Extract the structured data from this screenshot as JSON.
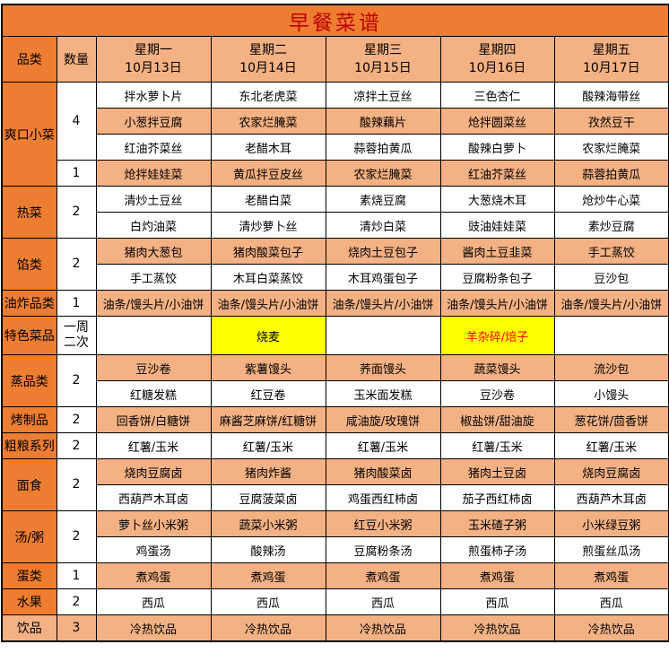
{
  "title": "早餐菜谱",
  "header": {
    "category_label": "品类",
    "qty_label": "数量",
    "days": [
      {
        "name": "星期一",
        "date": "10月13日"
      },
      {
        "name": "星期二",
        "date": "10月14日"
      },
      {
        "name": "星期三",
        "date": "10月15日"
      },
      {
        "name": "星期四",
        "date": "10月16日"
      },
      {
        "name": "星期五",
        "date": "10月17日"
      }
    ]
  },
  "colors": {
    "dark_orange": "#ED7D31",
    "light_orange": "#F4B183",
    "highlight_yellow": "#FFFF00",
    "title_red": "#C00000",
    "special_red": "#FF0000",
    "border_black": "#000000"
  },
  "sections": [
    {
      "category": "爽口小菜",
      "qty_groups": [
        {
          "qty": "4",
          "rows": 3
        },
        {
          "qty": "1",
          "rows": 1
        }
      ],
      "rows": [
        {
          "shade": "white",
          "cells": [
            "拌水萝卜片",
            "东北老虎菜",
            "凉拌土豆丝",
            "三色杏仁",
            "酸辣海带丝"
          ]
        },
        {
          "shade": "orange",
          "cells": [
            "小葱拌豆腐",
            "农家烂腌菜",
            "酸辣藕片",
            "炝拌圆菜丝",
            "孜然豆干"
          ]
        },
        {
          "shade": "white",
          "cells": [
            "红油芥菜丝",
            "老醋木耳",
            "蒜蓉拍黄瓜",
            "酸辣白萝卜",
            "农家烂腌菜"
          ]
        },
        {
          "shade": "orange",
          "cells": [
            "炝拌娃娃菜",
            "黄瓜拌豆皮丝",
            "农家烂腌菜",
            "红油芥菜丝",
            "蒜蓉拍黄瓜"
          ]
        }
      ]
    },
    {
      "category": "热菜",
      "qty_groups": [
        {
          "qty": "2",
          "rows": 2
        }
      ],
      "rows": [
        {
          "shade": "white",
          "cells": [
            "清炒土豆丝",
            "老醋白菜",
            "素烧豆腐",
            "大葱烧木耳",
            "炝炒牛心菜"
          ]
        },
        {
          "shade": "white",
          "cells": [
            "白灼油菜",
            "清炒萝卜丝",
            "清炒白菜",
            "豉油娃娃菜",
            "素炒豆腐"
          ]
        }
      ]
    },
    {
      "category": "馅类",
      "qty_groups": [
        {
          "qty": "2",
          "rows": 2
        }
      ],
      "rows": [
        {
          "shade": "orange",
          "cells": [
            "猪肉大葱包",
            "猪肉酸菜包子",
            "烧肉土豆包子",
            "酱肉土豆韭菜",
            "手工蒸饺"
          ]
        },
        {
          "shade": "white",
          "cells": [
            "手工蒸饺",
            "木耳白菜蒸饺",
            "木耳鸡蛋包子",
            "豆腐粉条包子",
            "豆沙包"
          ]
        }
      ]
    },
    {
      "category": "油炸品类",
      "qty_groups": [
        {
          "qty": "1",
          "rows": 1
        }
      ],
      "rows": [
        {
          "shade": "orange",
          "cells": [
            "油条/馒头片/小油饼",
            "油条/馒头片/小油饼",
            "油条/馒头片/小油饼",
            "油条/馒头片/小油饼",
            "油条/馒头片/小油饼"
          ]
        }
      ]
    },
    {
      "category": "特色菜品",
      "qty_groups": [
        {
          "qty": "一周\n二次",
          "rows": 1
        }
      ],
      "rows": [
        {
          "shade": "white",
          "tall": true,
          "cells": [
            "",
            {
              "text": "烧麦",
              "bg": "yellow"
            },
            "",
            {
              "text": "羊杂碎/焙子",
              "bg": "yellow",
              "color": "red"
            },
            ""
          ]
        }
      ]
    },
    {
      "category": "蒸品类",
      "qty_groups": [
        {
          "qty": "2",
          "rows": 2
        }
      ],
      "rows": [
        {
          "shade": "orange",
          "cells": [
            "豆沙卷",
            "紫薯馒头",
            "荞面馒头",
            "蔬菜馒头",
            "流沙包"
          ]
        },
        {
          "shade": "white",
          "cells": [
            "红糖发糕",
            "红豆卷",
            "玉米面发糕",
            "豆沙卷",
            "小馒头"
          ]
        }
      ]
    },
    {
      "category": "烤制品",
      "qty_groups": [
        {
          "qty": "2",
          "rows": 1
        }
      ],
      "rows": [
        {
          "shade": "orange",
          "cells": [
            "回香饼/白糖饼",
            "麻酱芝麻饼/红糖饼",
            "咸油旋/玫瑰饼",
            "椒盐饼/甜油旋",
            "葱花饼/茴香饼"
          ]
        }
      ]
    },
    {
      "category": "粗粮系列",
      "qty_groups": [
        {
          "qty": "2",
          "rows": 1
        }
      ],
      "rows": [
        {
          "shade": "white",
          "cells": [
            "红薯/玉米",
            "红薯/玉米",
            "红薯/玉米",
            "红薯/玉米",
            "红薯/玉米"
          ]
        }
      ]
    },
    {
      "category": "面食",
      "qty_groups": [
        {
          "qty": "2",
          "rows": 2
        }
      ],
      "rows": [
        {
          "shade": "orange",
          "cells": [
            "烧肉豆腐卤",
            "猪肉炸酱",
            "猪肉酸菜卤",
            "猪肉土豆卤",
            "烧肉豆腐卤"
          ]
        },
        {
          "shade": "white",
          "cells": [
            "西葫芦木耳卤",
            "豆腐菠菜卤",
            "鸡蛋西红柿卤",
            "茄子西红柿卤",
            "西葫芦木耳卤"
          ]
        }
      ]
    },
    {
      "category": "汤/粥",
      "qty_groups": [
        {
          "qty": "2",
          "rows": 2
        }
      ],
      "rows": [
        {
          "shade": "orange",
          "cells": [
            "萝卜丝小米粥",
            "蔬菜小米粥",
            "红豆小米粥",
            "玉米碴子粥",
            "小米绿豆粥"
          ]
        },
        {
          "shade": "white",
          "cells": [
            "鸡蛋汤",
            "酸辣汤",
            "豆腐粉条汤",
            "煎蛋柿子汤",
            "煎蛋丝瓜汤"
          ]
        }
      ]
    },
    {
      "category": "蛋类",
      "qty_groups": [
        {
          "qty": "1",
          "rows": 1
        }
      ],
      "rows": [
        {
          "shade": "orange",
          "cells": [
            "煮鸡蛋",
            "煮鸡蛋",
            "煮鸡蛋",
            "煮鸡蛋",
            "煮鸡蛋"
          ]
        }
      ]
    },
    {
      "category": "水果",
      "qty_groups": [
        {
          "qty": "2",
          "rows": 1
        }
      ],
      "rows": [
        {
          "shade": "white",
          "cells": [
            "西瓜",
            "西瓜",
            "西瓜",
            "西瓜",
            "西瓜"
          ]
        }
      ]
    },
    {
      "category": "饮品",
      "category_shade": "light",
      "qty_shade": "light",
      "qty_groups": [
        {
          "qty": "3",
          "rows": 1
        }
      ],
      "rows": [
        {
          "shade": "orange",
          "cells": [
            "冷热饮品",
            "冷热饮品",
            "冷热饮品",
            "冷热饮品",
            "冷热饮品"
          ]
        }
      ]
    }
  ]
}
